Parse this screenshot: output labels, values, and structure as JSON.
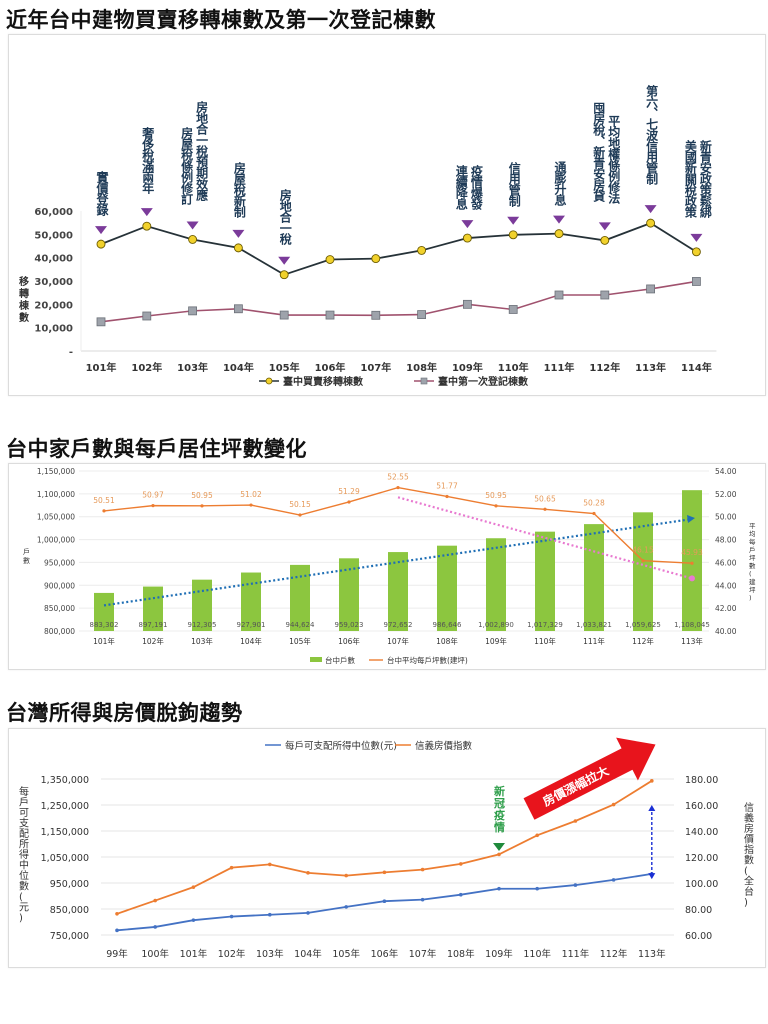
{
  "sections": [
    {
      "title": "近年台中建物買賣移轉棟數及第一次登記棟數"
    },
    {
      "title": "台中家戶數與每戶居住坪數變化"
    },
    {
      "title": "台灣所得與房價脫鉤趨勢"
    }
  ],
  "chart_data": [
    {
      "type": "line",
      "title": "近年台中建物買賣移轉棟數及第一次登記棟數",
      "xlabel": "",
      "ylabel": "移轉棟數",
      "categories": [
        "101年",
        "102年",
        "103年",
        "104年",
        "105年",
        "106年",
        "107年",
        "108年",
        "109年",
        "110年",
        "111年",
        "112年",
        "113年",
        "114年"
      ],
      "yticks": [
        "-",
        "10,000",
        "20,000",
        "30,000",
        "40,000",
        "50,000",
        "60,000"
      ],
      "ylim": [
        0,
        60000
      ],
      "series": [
        {
          "name": "臺中買賣移轉棟數",
          "color": "#263238",
          "marker": "circle-yellow",
          "values": [
            45800,
            53500,
            47800,
            44200,
            32700,
            39200,
            39600,
            43100,
            48400,
            49800,
            50300,
            47400,
            54800,
            42500
          ]
        },
        {
          "name": "臺中第一次登記棟數",
          "color": "#a0526e",
          "marker": "square-gray",
          "values": [
            12500,
            15000,
            17200,
            18100,
            15400,
            15400,
            15300,
            15600,
            20000,
            17800,
            24000,
            24000,
            26600,
            29800
          ]
        }
      ],
      "annotations": [
        {
          "x": "101年",
          "text": "實價登錄"
        },
        {
          "x": "102年",
          "text": "奢侈稅滿兩年"
        },
        {
          "x": "103年",
          "text": "房屋稅條例修訂",
          "text2": "房地合一稅預期效應"
        },
        {
          "x": "104年",
          "text": "房屋稅新制"
        },
        {
          "x": "105年",
          "text": "房地合一稅"
        },
        {
          "x": "109年",
          "text": "連續降息",
          "text2": "疫情爆發"
        },
        {
          "x": "110年",
          "text": "信用管制"
        },
        {
          "x": "111年",
          "text": "通膨升息"
        },
        {
          "x": "112年",
          "text": "囤房稅、新青安房貸",
          "text2": "平均地權條例修法"
        },
        {
          "x": "113年",
          "text": "第六、七波信用管制"
        },
        {
          "x": "114年",
          "text": "美國新關稅政策",
          "text2": "新青安政策鬆綁"
        }
      ],
      "legend_position": "bottom",
      "grid": false
    },
    {
      "type": "bar",
      "title": "台中家戶數與每戶居住坪數變化",
      "categories": [
        "101年",
        "102年",
        "103年",
        "104年",
        "105年",
        "106年",
        "107年",
        "108年",
        "109年",
        "110年",
        "111年",
        "112年",
        "113年"
      ],
      "ylabel": "戶數",
      "y2label": "平均每戶坪數(建坪)",
      "ylim": [
        800000,
        1150000
      ],
      "y2lim": [
        40,
        54
      ],
      "yticks": [
        "800,000",
        "850,000",
        "900,000",
        "950,000",
        "1,000,000",
        "1,050,000",
        "1,100,000",
        "1,150,000"
      ],
      "y2ticks": [
        "40.00",
        "42.00",
        "44.00",
        "46.00",
        "48.00",
        "50.00",
        "52.00",
        "54.00"
      ],
      "series": [
        {
          "name": "台中戶數",
          "type": "bar",
          "color": "#8cc63f",
          "values": [
            883302,
            897191,
            912305,
            927901,
            944624,
            959023,
            972652,
            986646,
            1002890,
            1017329,
            1033821,
            1059625,
            1108045
          ],
          "labels": [
            "883,302",
            "897,191",
            "912,305",
            "927,901",
            "944,624",
            "959,023",
            "972,652",
            "986,646",
            "1,002,890",
            "1,017,329",
            "1,033,821",
            "1,059,625",
            "1,108,045"
          ]
        },
        {
          "name": "台中平均每戶坪數(建坪)",
          "type": "line",
          "axis": "right",
          "color": "#ed7d31",
          "values": [
            50.51,
            50.97,
            50.95,
            51.02,
            50.15,
            51.29,
            52.55,
            51.77,
            50.95,
            50.65,
            50.28,
            46.15,
            45.93
          ],
          "labels": [
            "50.51",
            "50.97",
            "50.95",
            "51.02",
            "50.15",
            "51.29",
            "52.55",
            "51.77",
            "50.95",
            "50.65",
            "50.28",
            "46.15",
            "45.93"
          ]
        }
      ],
      "trendlines": [
        {
          "name": "households-trend",
          "color": "#1f6fb5",
          "style": "dotted",
          "from": "101年",
          "to": "113年"
        },
        {
          "name": "area-trend",
          "color": "#e879d0",
          "style": "dotted",
          "from": "107年",
          "to": "113年"
        }
      ],
      "legend_position": "bottom",
      "grid": true
    },
    {
      "type": "line",
      "title": "台灣所得與房價脫鉤趨勢",
      "categories": [
        "99年",
        "100年",
        "101年",
        "102年",
        "103年",
        "104年",
        "105年",
        "106年",
        "107年",
        "108年",
        "109年",
        "110年",
        "111年",
        "112年",
        "113年"
      ],
      "ylabel": "每戶可支配所得中位數(元)",
      "y2label": "信義房價指數(全台)",
      "ylim": [
        750000,
        1350000
      ],
      "y2lim": [
        60,
        180
      ],
      "yticks": [
        "750,000",
        "850,000",
        "950,000",
        "1,050,000",
        "1,150,000",
        "1,250,000",
        "1,350,000"
      ],
      "y2ticks": [
        "60.00",
        "80.00",
        "100.00",
        "120.00",
        "140.00",
        "160.00",
        "180.00"
      ],
      "series": [
        {
          "name": "每戶可支配所得中位數(元)",
          "axis": "left",
          "color": "#4472c4",
          "values": [
            768000,
            781000,
            807000,
            821000,
            828000,
            835000,
            858000,
            880000,
            886000,
            905000,
            928000,
            928000,
            942000,
            962000,
            985000
          ]
        },
        {
          "name": "信義房價指數",
          "axis": "right",
          "color": "#ed7d31",
          "values": [
            76.3,
            86.5,
            96.8,
            111.8,
            114.3,
            107.8,
            105.7,
            108.2,
            110.3,
            114.7,
            122.0,
            136.7,
            147.7,
            160.3,
            178.6
          ]
        }
      ],
      "annotations": [
        {
          "x": "109年",
          "text": "新冠疫情",
          "color": "#2e9e4a"
        },
        {
          "text": "房價漲幅拉大",
          "type": "arrow",
          "color": "#e8141c"
        }
      ],
      "legend_position": "top",
      "grid": true
    }
  ]
}
